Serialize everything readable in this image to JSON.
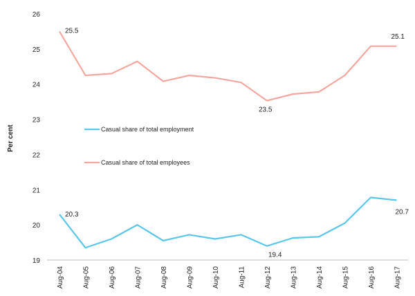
{
  "chart_data": {
    "type": "line",
    "title": "",
    "xlabel": "",
    "ylabel": "Per cent",
    "ylim": [
      19,
      26
    ],
    "yticks": [
      "19",
      "20",
      "21",
      "22",
      "23",
      "24",
      "25",
      "26"
    ],
    "categories": [
      "Aug-04",
      "Aug-05",
      "Aug-06",
      "Aug-07",
      "Aug-08",
      "Aug-09",
      "Aug-10",
      "Aug-11",
      "Aug-12",
      "Aug-13",
      "Aug-14",
      "Aug-15",
      "Aug-16",
      "Aug-17"
    ],
    "series": [
      {
        "name": "Casual share of total employment",
        "color": "#5bc6e8",
        "values": [
          20.3,
          19.35,
          19.6,
          20.0,
          19.55,
          19.72,
          19.6,
          19.72,
          19.4,
          19.63,
          19.66,
          20.05,
          20.78,
          20.7
        ]
      },
      {
        "name": "Casual share of total employees",
        "color": "#f4a7a0",
        "values": [
          25.5,
          24.25,
          24.3,
          24.65,
          24.08,
          24.25,
          24.18,
          24.05,
          23.53,
          23.72,
          23.78,
          24.25,
          25.08,
          25.08
        ]
      }
    ],
    "annotations": [
      {
        "text": "25.5",
        "series": 1,
        "index": 0
      },
      {
        "text": "23.5",
        "series": 1,
        "index": 8
      },
      {
        "text": "25.1",
        "series": 1,
        "index": 13
      },
      {
        "text": "20.3",
        "series": 0,
        "index": 0
      },
      {
        "text": "19.4",
        "series": 0,
        "index": 8
      },
      {
        "text": "20.7",
        "series": 0,
        "index": 13
      }
    ],
    "legend": [
      {
        "label": "Casual share of total employment",
        "color": "#5bc6e8"
      },
      {
        "label": "Casual share of total employees",
        "color": "#f4a7a0"
      }
    ],
    "grid": false
  }
}
